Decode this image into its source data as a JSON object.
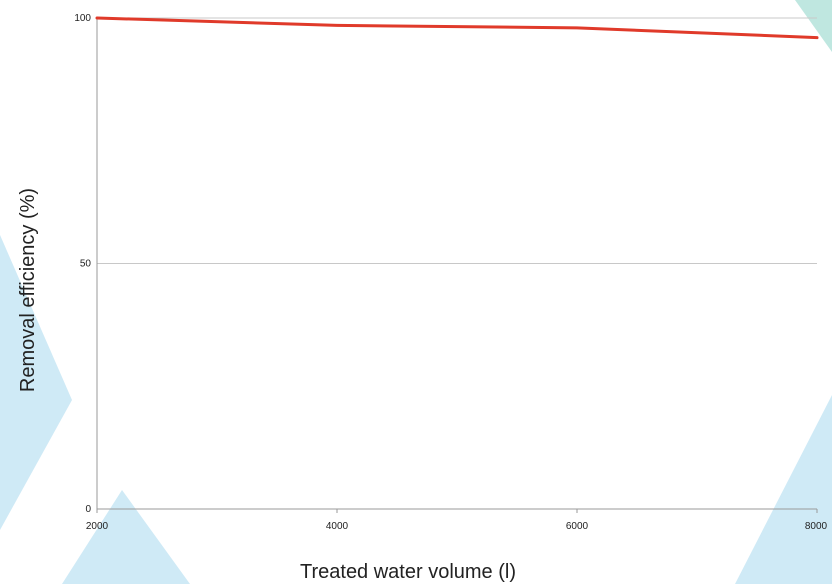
{
  "colors": {
    "line": "#e03a2a",
    "grid": "#c8c8c8",
    "axis": "#9a9a9a",
    "decor": "#cfeaf6",
    "decor_teal": "#bfe7e0"
  },
  "chart_data": {
    "type": "line",
    "xlabel": "Treated water volume (l)",
    "ylabel": "Removal efficiency (%)",
    "xlim": [
      2000,
      8000
    ],
    "ylim": [
      0,
      100
    ],
    "x_ticks": [
      "2000",
      "4000",
      "6000",
      "8000"
    ],
    "y_ticks": [
      "0",
      "50",
      "100"
    ],
    "grid": true,
    "series": [
      {
        "x": [
          2000,
          4000,
          6000,
          8000
        ],
        "values": [
          100,
          98.5,
          98,
          96
        ]
      }
    ]
  }
}
